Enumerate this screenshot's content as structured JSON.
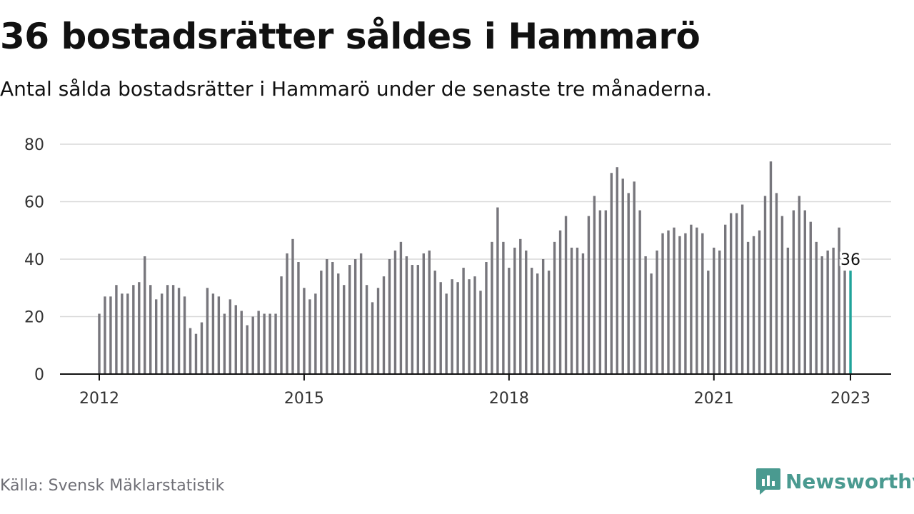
{
  "header": {
    "title": "36 bostadsrätter såldes i Hammarö",
    "subtitle": "Antal sålda bostadsrätter i Hammarö under de senaste tre månaderna."
  },
  "footer": {
    "source": "Källa: Svensk Mäklarstatistik",
    "brand": "Newsworthy",
    "brand_icon": "bar-chart-speech-bubble-icon"
  },
  "colors": {
    "bar": "#77767c",
    "highlight": "#1fa39a",
    "grid": "#d9d9d9",
    "axis": "#111111",
    "brand": "#4a9a90"
  },
  "chart_data": {
    "type": "bar",
    "title": "36 bostadsrätter såldes i Hammarö",
    "subtitle": "Antal sålda bostadsrätter i Hammarö under de senaste tre månaderna.",
    "xlabel": "",
    "ylabel": "",
    "ylim": [
      0,
      80
    ],
    "yticks": [
      0,
      20,
      40,
      60,
      80
    ],
    "xticks": [
      "2012",
      "2015",
      "2018",
      "2021",
      "2023"
    ],
    "grid": true,
    "legend": "none",
    "start": "2012-01",
    "frequency": "monthly",
    "values": [
      21,
      27,
      27,
      31,
      28,
      28,
      31,
      32,
      41,
      31,
      26,
      28,
      31,
      31,
      30,
      27,
      16,
      14,
      18,
      30,
      28,
      27,
      21,
      26,
      24,
      22,
      17,
      20,
      22,
      21,
      21,
      21,
      34,
      42,
      47,
      39,
      30,
      26,
      28,
      36,
      40,
      39,
      35,
      31,
      38,
      40,
      42,
      31,
      25,
      30,
      34,
      40,
      43,
      46,
      41,
      38,
      38,
      42,
      43,
      36,
      32,
      28,
      33,
      32,
      37,
      33,
      34,
      29,
      39,
      46,
      58,
      46,
      37,
      44,
      47,
      43,
      37,
      35,
      40,
      36,
      46,
      50,
      55,
      44,
      44,
      42,
      55,
      62,
      57,
      57,
      70,
      72,
      68,
      63,
      67,
      57,
      41,
      35,
      43,
      49,
      50,
      51,
      48,
      49,
      52,
      51,
      49,
      36,
      44,
      43,
      52,
      56,
      56,
      59,
      46,
      48,
      50,
      62,
      74,
      63,
      55,
      44,
      57,
      62,
      57,
      53,
      46,
      41,
      43,
      44,
      51,
      36,
      36
    ],
    "highlight": {
      "label": "36",
      "value": 36,
      "index": 132
    }
  }
}
